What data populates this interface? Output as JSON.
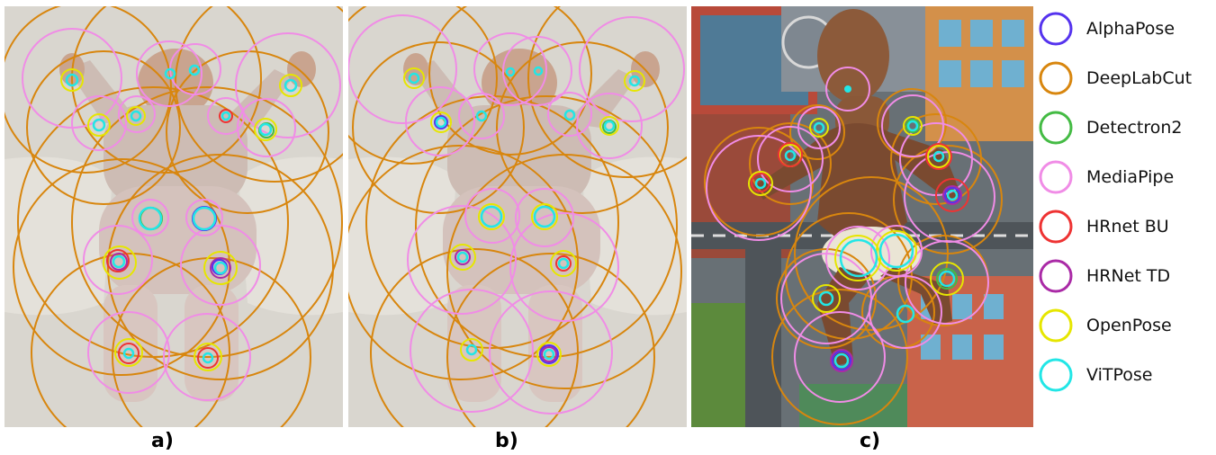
{
  "captions": {
    "a": "a)",
    "b": "b)",
    "c": "c)"
  },
  "legend": [
    {
      "label": "AlphaPose",
      "color": "#5533ee"
    },
    {
      "label": "DeepLabCut",
      "color": "#d8860e"
    },
    {
      "label": "Detectron2",
      "color": "#44bb44"
    },
    {
      "label": "MediaPipe",
      "color": "#f08ce6"
    },
    {
      "label": "HRnet BU",
      "color": "#ee3333"
    },
    {
      "label": "HRNet TD",
      "color": "#aa2aa6"
    },
    {
      "label": "OpenPose",
      "color": "#e6e600"
    },
    {
      "label": "ViTPose",
      "color": "#22e6e6"
    }
  ]
}
